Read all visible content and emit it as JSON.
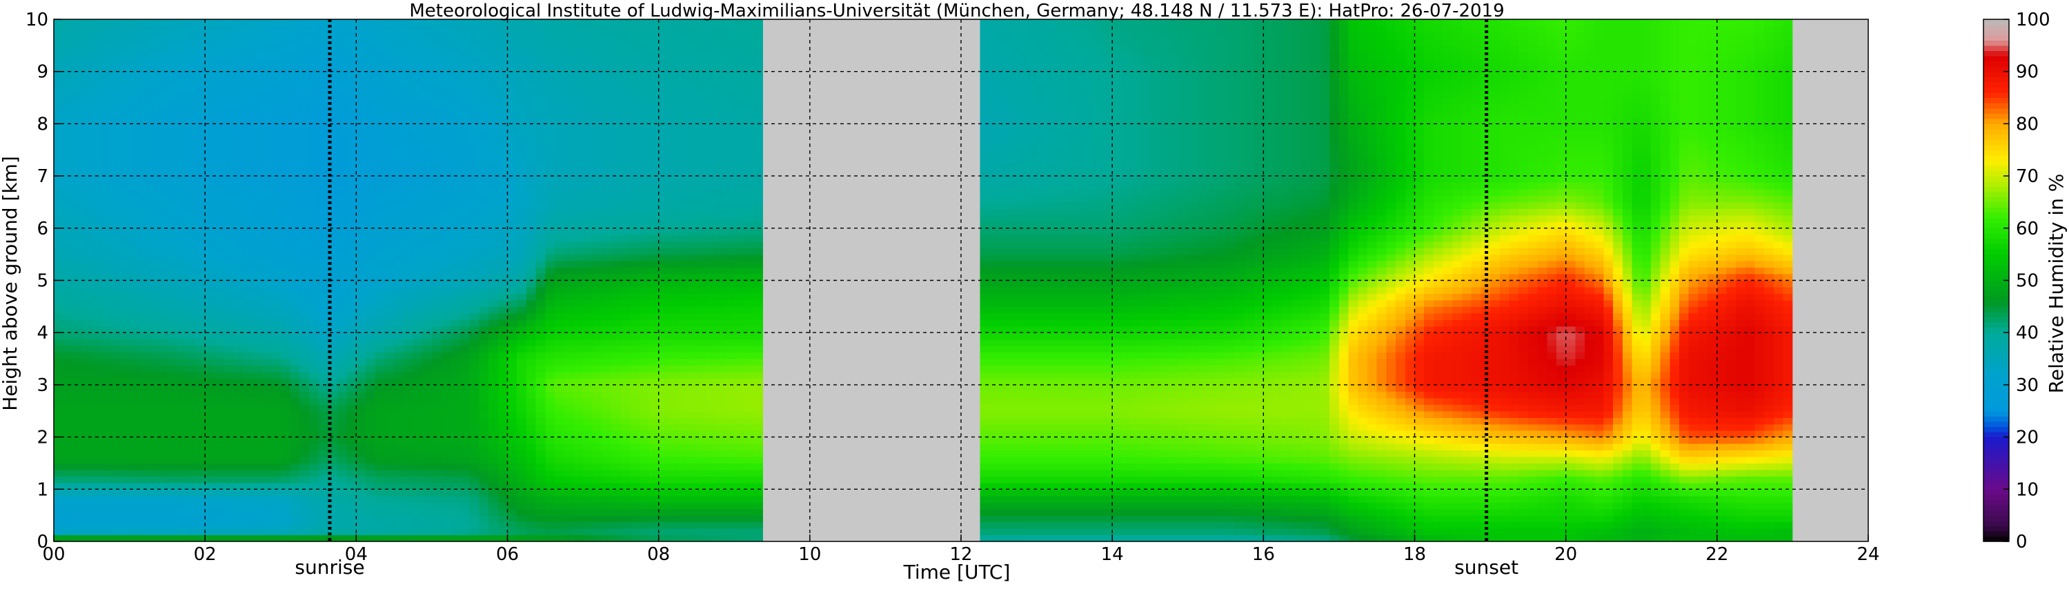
{
  "chart_data": {
    "type": "heatmap",
    "title": "Meteorological Institute of Ludwig-Maximilians-Universität (München, Germany; 48.148 N / 11.573 E):    HatPro: 26-07-2019",
    "xlabel": "Time [UTC]",
    "ylabel": "Height above ground [km]",
    "xlim": [
      0,
      24
    ],
    "ylim": [
      0,
      10
    ],
    "x_ticks": [
      "00",
      "02",
      "04",
      "06",
      "08",
      "10",
      "12",
      "14",
      "16",
      "18",
      "20",
      "22",
      "24"
    ],
    "y_ticks": [
      "0",
      "1",
      "2",
      "3",
      "4",
      "5",
      "6",
      "7",
      "8",
      "9",
      "10"
    ],
    "grid": true,
    "missing_data_color": "#c8c8c8",
    "data_gaps": [
      [
        9.4,
        12.25
      ],
      [
        23.0,
        24.0
      ]
    ],
    "events": [
      {
        "label": "sunrise",
        "time": 3.65
      },
      {
        "label": "sunset",
        "time": 18.95
      }
    ],
    "colorbar": {
      "label": "Relative Humidity in %",
      "range": [
        0,
        100
      ],
      "ticks": [
        "0",
        "10",
        "20",
        "30",
        "40",
        "50",
        "60",
        "70",
        "80",
        "90",
        "100"
      ],
      "colors": [
        {
          "value": 0,
          "color": "#000000"
        },
        {
          "value": 3,
          "color": "#3a0a4a"
        },
        {
          "value": 10,
          "color": "#6a0a8a"
        },
        {
          "value": 20,
          "color": "#1a1acc"
        },
        {
          "value": 22,
          "color": "#0055dd"
        },
        {
          "value": 25,
          "color": "#0099dd"
        },
        {
          "value": 32,
          "color": "#00a3cc"
        },
        {
          "value": 40,
          "color": "#00aa99"
        },
        {
          "value": 46,
          "color": "#009922"
        },
        {
          "value": 55,
          "color": "#00cc00"
        },
        {
          "value": 62,
          "color": "#33ee00"
        },
        {
          "value": 68,
          "color": "#aaee00"
        },
        {
          "value": 73,
          "color": "#ffee00"
        },
        {
          "value": 80,
          "color": "#ffaa00"
        },
        {
          "value": 86,
          "color": "#ff2200"
        },
        {
          "value": 93,
          "color": "#dd0000"
        },
        {
          "value": 96,
          "color": "#dd9999"
        },
        {
          "value": 100,
          "color": "#bbbbbb"
        }
      ]
    },
    "humidity_field": {
      "time_nodes_utc": [
        0,
        1.5,
        3.0,
        3.65,
        4.3,
        5.5,
        6.2,
        6.6,
        8.0,
        9.4,
        12.25,
        14.0,
        15.5,
        16.8,
        17.2,
        18.2,
        19.2,
        20.0,
        20.5,
        21.0,
        21.6,
        22.4,
        23.0
      ],
      "height_nodes_km": [
        0,
        0.08,
        0.2,
        0.4,
        0.8,
        1.2,
        1.6,
        2.0,
        2.5,
        3.0,
        3.5,
        4.0,
        4.5,
        5.0,
        5.5,
        6.0,
        6.5,
        7.0,
        8.0,
        9.0,
        10.0
      ],
      "rh_percent_profiles": [
        [
          58,
          44,
          32,
          30,
          32,
          42,
          48,
          48,
          48,
          47,
          46,
          42,
          40,
          38,
          36,
          35,
          34,
          33,
          33,
          35,
          38
        ],
        [
          58,
          44,
          33,
          30,
          32,
          43,
          48,
          48,
          48,
          47,
          44,
          40,
          37,
          35,
          33,
          32,
          31,
          30,
          30,
          32,
          35
        ],
        [
          58,
          44,
          34,
          32,
          33,
          43,
          48,
          48,
          48,
          46,
          41,
          37,
          34,
          32,
          30,
          29,
          29,
          28,
          28,
          30,
          33
        ],
        [
          56,
          44,
          38,
          37,
          38,
          40,
          43,
          45,
          44,
          40,
          36,
          33,
          31,
          30,
          29,
          28,
          27,
          27,
          27,
          29,
          32
        ],
        [
          58,
          44,
          38,
          38,
          40,
          43,
          47,
          48,
          48,
          46,
          42,
          37,
          34,
          32,
          31,
          30,
          29,
          28,
          29,
          31,
          33
        ],
        [
          56,
          45,
          40,
          40,
          41,
          44,
          48,
          49,
          49,
          49,
          48,
          44,
          39,
          35,
          33,
          32,
          31,
          30,
          31,
          33,
          35
        ],
        [
          52,
          46,
          43,
          45,
          48,
          51,
          53,
          55,
          57,
          58,
          58,
          52,
          44,
          38,
          35,
          34,
          33,
          33,
          34,
          35,
          37
        ],
        [
          50,
          46,
          44,
          46,
          50,
          55,
          58,
          60,
          62,
          64,
          60,
          56,
          52,
          48,
          42,
          38,
          36,
          35,
          35,
          36,
          38
        ],
        [
          44,
          43,
          42,
          45,
          52,
          58,
          62,
          64,
          66,
          66,
          62,
          58,
          55,
          51,
          44,
          40,
          38,
          37,
          37,
          38,
          39
        ],
        [
          42,
          42,
          42,
          45,
          52,
          58,
          63,
          65,
          67,
          67,
          63,
          58,
          56,
          52,
          45,
          41,
          39,
          38,
          38,
          39,
          40
        ],
        [
          40,
          40,
          42,
          44,
          50,
          58,
          62,
          64,
          66,
          65,
          62,
          57,
          52,
          48,
          44,
          42,
          40,
          38,
          36,
          37,
          38
        ],
        [
          39,
          40,
          42,
          44,
          50,
          58,
          62,
          64,
          66,
          65,
          62,
          57,
          52,
          48,
          44,
          42,
          41,
          40,
          40,
          40,
          41
        ],
        [
          39,
          40,
          42,
          44,
          50,
          58,
          63,
          65,
          67,
          66,
          63,
          58,
          54,
          50,
          46,
          44,
          43,
          42,
          42,
          42,
          42
        ],
        [
          40,
          42,
          44,
          46,
          52,
          60,
          64,
          66,
          67,
          67,
          65,
          62,
          58,
          54,
          50,
          47,
          45,
          44,
          44,
          44,
          44
        ],
        [
          44,
          46,
          48,
          50,
          56,
          62,
          66,
          70,
          74,
          78,
          78,
          75,
          70,
          64,
          58,
          54,
          50,
          48,
          50,
          52,
          54
        ],
        [
          52,
          52,
          54,
          56,
          60,
          64,
          68,
          74,
          82,
          88,
          88,
          86,
          82,
          74,
          68,
          62,
          60,
          58,
          58,
          56,
          58
        ],
        [
          54,
          54,
          54,
          56,
          60,
          64,
          70,
          78,
          86,
          90,
          90,
          90,
          86,
          82,
          76,
          70,
          64,
          60,
          60,
          58,
          60
        ],
        [
          54,
          54,
          54,
          56,
          58,
          62,
          70,
          80,
          88,
          92,
          94,
          95,
          90,
          86,
          80,
          74,
          66,
          62,
          60,
          60,
          62
        ],
        [
          52,
          52,
          53,
          56,
          60,
          64,
          72,
          82,
          88,
          90,
          92,
          92,
          88,
          82,
          76,
          70,
          64,
          62,
          60,
          60,
          60
        ],
        [
          52,
          50,
          50,
          52,
          56,
          60,
          66,
          72,
          76,
          78,
          74,
          70,
          66,
          62,
          60,
          58,
          56,
          56,
          58,
          60,
          60
        ],
        [
          54,
          52,
          52,
          54,
          58,
          66,
          76,
          84,
          88,
          90,
          90,
          88,
          84,
          80,
          74,
          70,
          66,
          64,
          62,
          62,
          62
        ],
        [
          54,
          52,
          54,
          56,
          60,
          64,
          74,
          84,
          90,
          92,
          92,
          92,
          90,
          86,
          78,
          72,
          66,
          62,
          60,
          60,
          62
        ],
        [
          54,
          52,
          52,
          56,
          60,
          64,
          72,
          80,
          86,
          88,
          88,
          88,
          86,
          82,
          74,
          68,
          64,
          60,
          58,
          58,
          60
        ]
      ]
    }
  }
}
